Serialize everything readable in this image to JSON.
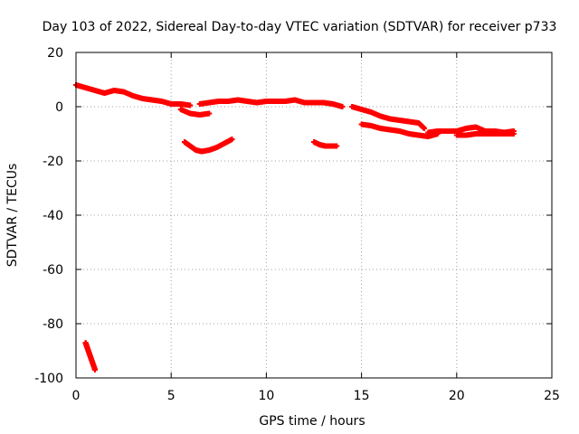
{
  "chart_data": {
    "type": "scatter",
    "title": "Day 103 of 2022, Sidereal Day-to-day VTEC variation (SDTVAR) for receiver p733",
    "xlabel": "GPS time / hours",
    "ylabel": "SDTVAR / TECUs",
    "xlim": [
      0,
      25
    ],
    "ylim": [
      -100,
      20
    ],
    "xticks": [
      0,
      5,
      10,
      15,
      20,
      25
    ],
    "yticks": [
      -100,
      -80,
      -60,
      -40,
      -20,
      0,
      20
    ],
    "grid": true,
    "marker": "+",
    "series": [
      {
        "name": "SDTVAR",
        "color": "#ff0000",
        "segments": [
          {
            "id": "main-early",
            "x": [
              0.0,
              0.5,
              1.0,
              1.5,
              2.0,
              2.5,
              3.0,
              3.5,
              4.0,
              4.5,
              5.0,
              5.5,
              6.0
            ],
            "y": [
              8,
              7,
              6,
              5,
              6,
              5.5,
              4,
              3,
              2.5,
              2,
              1,
              1,
              0.5
            ]
          },
          {
            "id": "dip-6h",
            "x": [
              5.5,
              6.0,
              6.5,
              7.0
            ],
            "y": [
              -1,
              -2.5,
              -3,
              -2.5
            ]
          },
          {
            "id": "main-mid",
            "x": [
              6.5,
              7.0,
              7.5,
              8.0,
              8.5,
              9.0,
              9.5,
              10.0,
              10.5,
              11.0,
              11.5,
              12.0,
              12.5,
              13.0,
              13.5,
              14.0
            ],
            "y": [
              1,
              1.5,
              2,
              2,
              2.5,
              2,
              1.5,
              2,
              2,
              2,
              2.5,
              1.5,
              1.5,
              1.5,
              1,
              0
            ]
          },
          {
            "id": "arc-7h",
            "x": [
              5.7,
              6.0,
              6.3,
              6.6,
              7.0,
              7.4,
              7.8,
              8.2
            ],
            "y": [
              -13,
              -14.5,
              -16,
              -16.5,
              -16,
              -15,
              -13.5,
              -12
            ]
          },
          {
            "id": "short-13h",
            "x": [
              12.5,
              12.8,
              13.1,
              13.4,
              13.7
            ],
            "y": [
              -13,
              -14,
              -14.5,
              -14.5,
              -14.5
            ]
          },
          {
            "id": "upper-late",
            "x": [
              14.5,
              15.0,
              15.5,
              16.0,
              16.5,
              17.0,
              17.5,
              18.0,
              18.3
            ],
            "y": [
              0,
              -1,
              -2,
              -3.5,
              -4.5,
              -5,
              -5.5,
              -6,
              -8
            ]
          },
          {
            "id": "lower-late",
            "x": [
              15.0,
              15.5,
              16.0,
              16.5,
              17.0,
              17.5,
              18.0,
              18.5,
              19.0
            ],
            "y": [
              -6.5,
              -7,
              -8,
              -8.5,
              -9,
              -10,
              -10.5,
              -11,
              -10
            ]
          },
          {
            "id": "tail-late",
            "x": [
              18.5,
              19.0,
              19.5,
              20.0,
              20.5,
              21.0,
              21.5,
              22.0,
              22.5,
              23.0
            ],
            "y": [
              -9.5,
              -9,
              -9,
              -9,
              -8,
              -7.5,
              -9,
              -9,
              -9.5,
              -9
            ]
          },
          {
            "id": "tail-late-low",
            "x": [
              20.0,
              20.5,
              21.0,
              21.5,
              22.0,
              22.5,
              23.0
            ],
            "y": [
              -10.5,
              -10.5,
              -10,
              -10,
              -10,
              -10,
              -10
            ]
          },
          {
            "id": "outlier-1h",
            "x": [
              0.5,
              0.6,
              0.7,
              0.8,
              0.9,
              1.0
            ],
            "y": [
              -87,
              -89,
              -91,
              -93,
              -95,
              -97
            ]
          }
        ]
      }
    ]
  }
}
